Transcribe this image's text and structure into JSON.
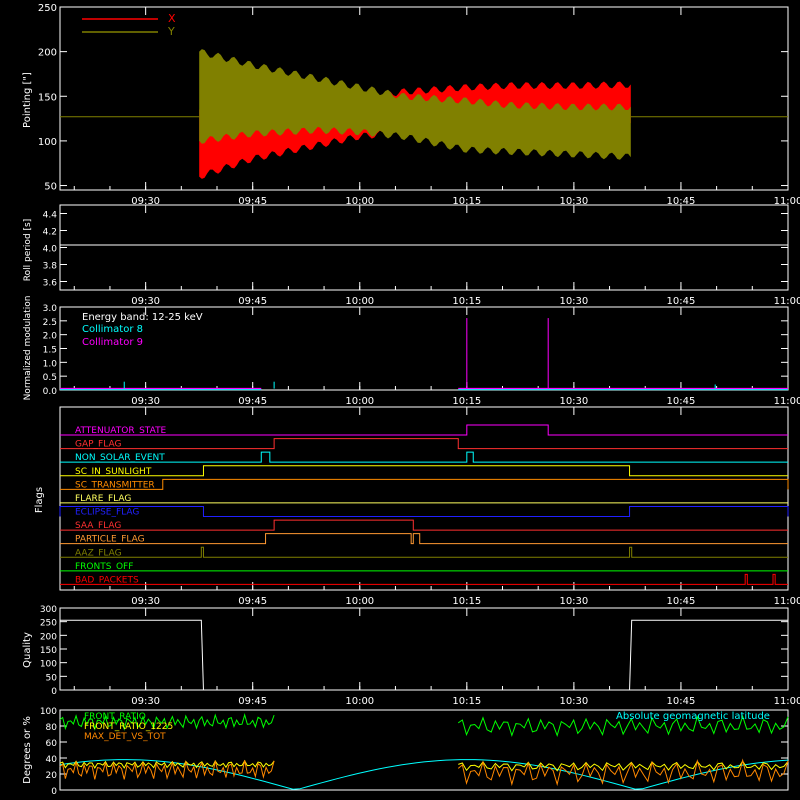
{
  "x_ticks": [
    "09:30",
    "09:45",
    "10:00",
    "10:15",
    "10:30",
    "10:45",
    "11:00"
  ],
  "chart_data": [
    {
      "type": "line",
      "ylabel": "Pointing [\"]",
      "ylim": [
        45,
        250
      ],
      "yticks": [
        "50",
        "100",
        "150",
        "200",
        "250"
      ],
      "legend": "top-left",
      "series": [
        {
          "name": "X",
          "color": "#ff0000"
        },
        {
          "name": "Y",
          "color": "#808000"
        }
      ],
      "baseline_value": 127,
      "envelope_time_hours": [
        9.625,
        9.75,
        9.9,
        10.0,
        10.1,
        10.25,
        10.35,
        10.5,
        10.633
      ],
      "x_upper": [
        135,
        138,
        143,
        148,
        155,
        160,
        162,
        162,
        163
      ],
      "x_lower": [
        60,
        80,
        95,
        105,
        110,
        113,
        115,
        118,
        120
      ],
      "y_upper": [
        200,
        185,
        170,
        160,
        150,
        145,
        140,
        138,
        138
      ],
      "y_lower": [
        100,
        108,
        112,
        110,
        105,
        90,
        88,
        85,
        82
      ]
    },
    {
      "type": "line",
      "ylabel": "Roll period [s]",
      "ylim": [
        3.5,
        4.5
      ],
      "yticks": [
        "3.6",
        "3.8",
        "4.0",
        "4.2",
        "4.4"
      ],
      "series": [
        {
          "name": "",
          "color": "#ffffff",
          "value": 4.03
        }
      ]
    },
    {
      "type": "line",
      "ylabel": "Normalized modulation",
      "ylim": [
        0,
        3.0
      ],
      "yticks": [
        "0.0",
        "0.5",
        "1.0",
        "1.5",
        "2.0",
        "2.5",
        "3.0"
      ],
      "legend": "top-left",
      "legend_title": "Energy band: 12-25 keV",
      "series": [
        {
          "name": "Collimator 8",
          "color": "#00ffff"
        },
        {
          "name": "Collimator 9",
          "color": "#ff00ff"
        }
      ],
      "spikes_time_hours": [
        9.45,
        9.8,
        10.25,
        10.44,
        10.83
      ],
      "spikes_value": [
        0.3,
        0.3,
        2.6,
        2.6,
        0.2
      ]
    },
    {
      "type": "table",
      "ylabel": "Flags",
      "flags": [
        {
          "name": "ATTENUATOR_STATE",
          "color": "#ff00ff",
          "on": [
            [
              10.25,
              10.44
            ]
          ]
        },
        {
          "name": "GAP_FLAG",
          "color": "#ff3030",
          "on": [
            [
              9.8,
              10.23
            ]
          ]
        },
        {
          "name": "NON_SOLAR_EVENT",
          "color": "#00ffff",
          "on": [
            [
              9.77,
              9.79
            ],
            [
              10.25,
              10.265
            ]
          ]
        },
        {
          "name": "SC_IN_SUNLIGHT",
          "color": "#ffff00",
          "on": [
            [
              9.635,
              10.63
            ]
          ]
        },
        {
          "name": "SC_TRANSMITTER",
          "color": "#ff8c00",
          "on": [
            [
              9.54,
              11.0
            ]
          ]
        },
        {
          "name": "FLARE_FLAG",
          "color": "#ffff60",
          "on": []
        },
        {
          "name": "ECLIPSE_FLAG",
          "color": "#2020ff",
          "on": [
            [
              9.3,
              9.635
            ],
            [
              10.63,
              11.0
            ]
          ]
        },
        {
          "name": "SAA_FLAG",
          "color": "#ff3030",
          "on": [
            [
              9.8,
              10.125
            ]
          ]
        },
        {
          "name": "PARTICLE_FLAG",
          "color": "#ff9933",
          "on": [
            [
              9.78,
              10.12
            ],
            [
              10.125,
              10.14
            ]
          ]
        },
        {
          "name": "AAZ_FLAG",
          "color": "#808000",
          "on": [
            [
              9.63,
              9.635
            ],
            [
              10.63,
              10.635
            ]
          ]
        },
        {
          "name": "FRONTS_OFF",
          "color": "#00ff00",
          "on": []
        },
        {
          "name": "BAD_PACKETS",
          "color": "#ff0000",
          "on": [
            [
              10.9,
              10.905
            ],
            [
              10.965,
              10.97
            ]
          ]
        }
      ]
    },
    {
      "type": "line",
      "ylabel": "Quality",
      "ylim": [
        0,
        300
      ],
      "yticks": [
        "0",
        "50",
        "100",
        "150",
        "200",
        "250",
        "300"
      ],
      "series": [
        {
          "name": "",
          "color": "#ffffff"
        }
      ],
      "steps_time_hours": [
        9.3,
        9.63,
        9.635,
        10.63,
        10.635,
        11.0
      ],
      "steps_value": [
        255,
        255,
        0,
        0,
        255,
        255
      ]
    },
    {
      "type": "line",
      "ylabel": "Degrees or %",
      "ylim": [
        0,
        100
      ],
      "yticks": [
        "0",
        "20",
        "40",
        "60",
        "80",
        "100"
      ],
      "legend": "top-left",
      "legend_right": "Absolute geomagnetic latitude",
      "legend_right_color": "#00ffff",
      "series": [
        {
          "name": "FRONT_RATIO",
          "color": "#00ff00"
        },
        {
          "name": "FRONT_RATIO_1225",
          "color": "#ffff00"
        },
        {
          "name": "MAX_DET_VS_TOT",
          "color": "#ff8800"
        }
      ]
    }
  ]
}
